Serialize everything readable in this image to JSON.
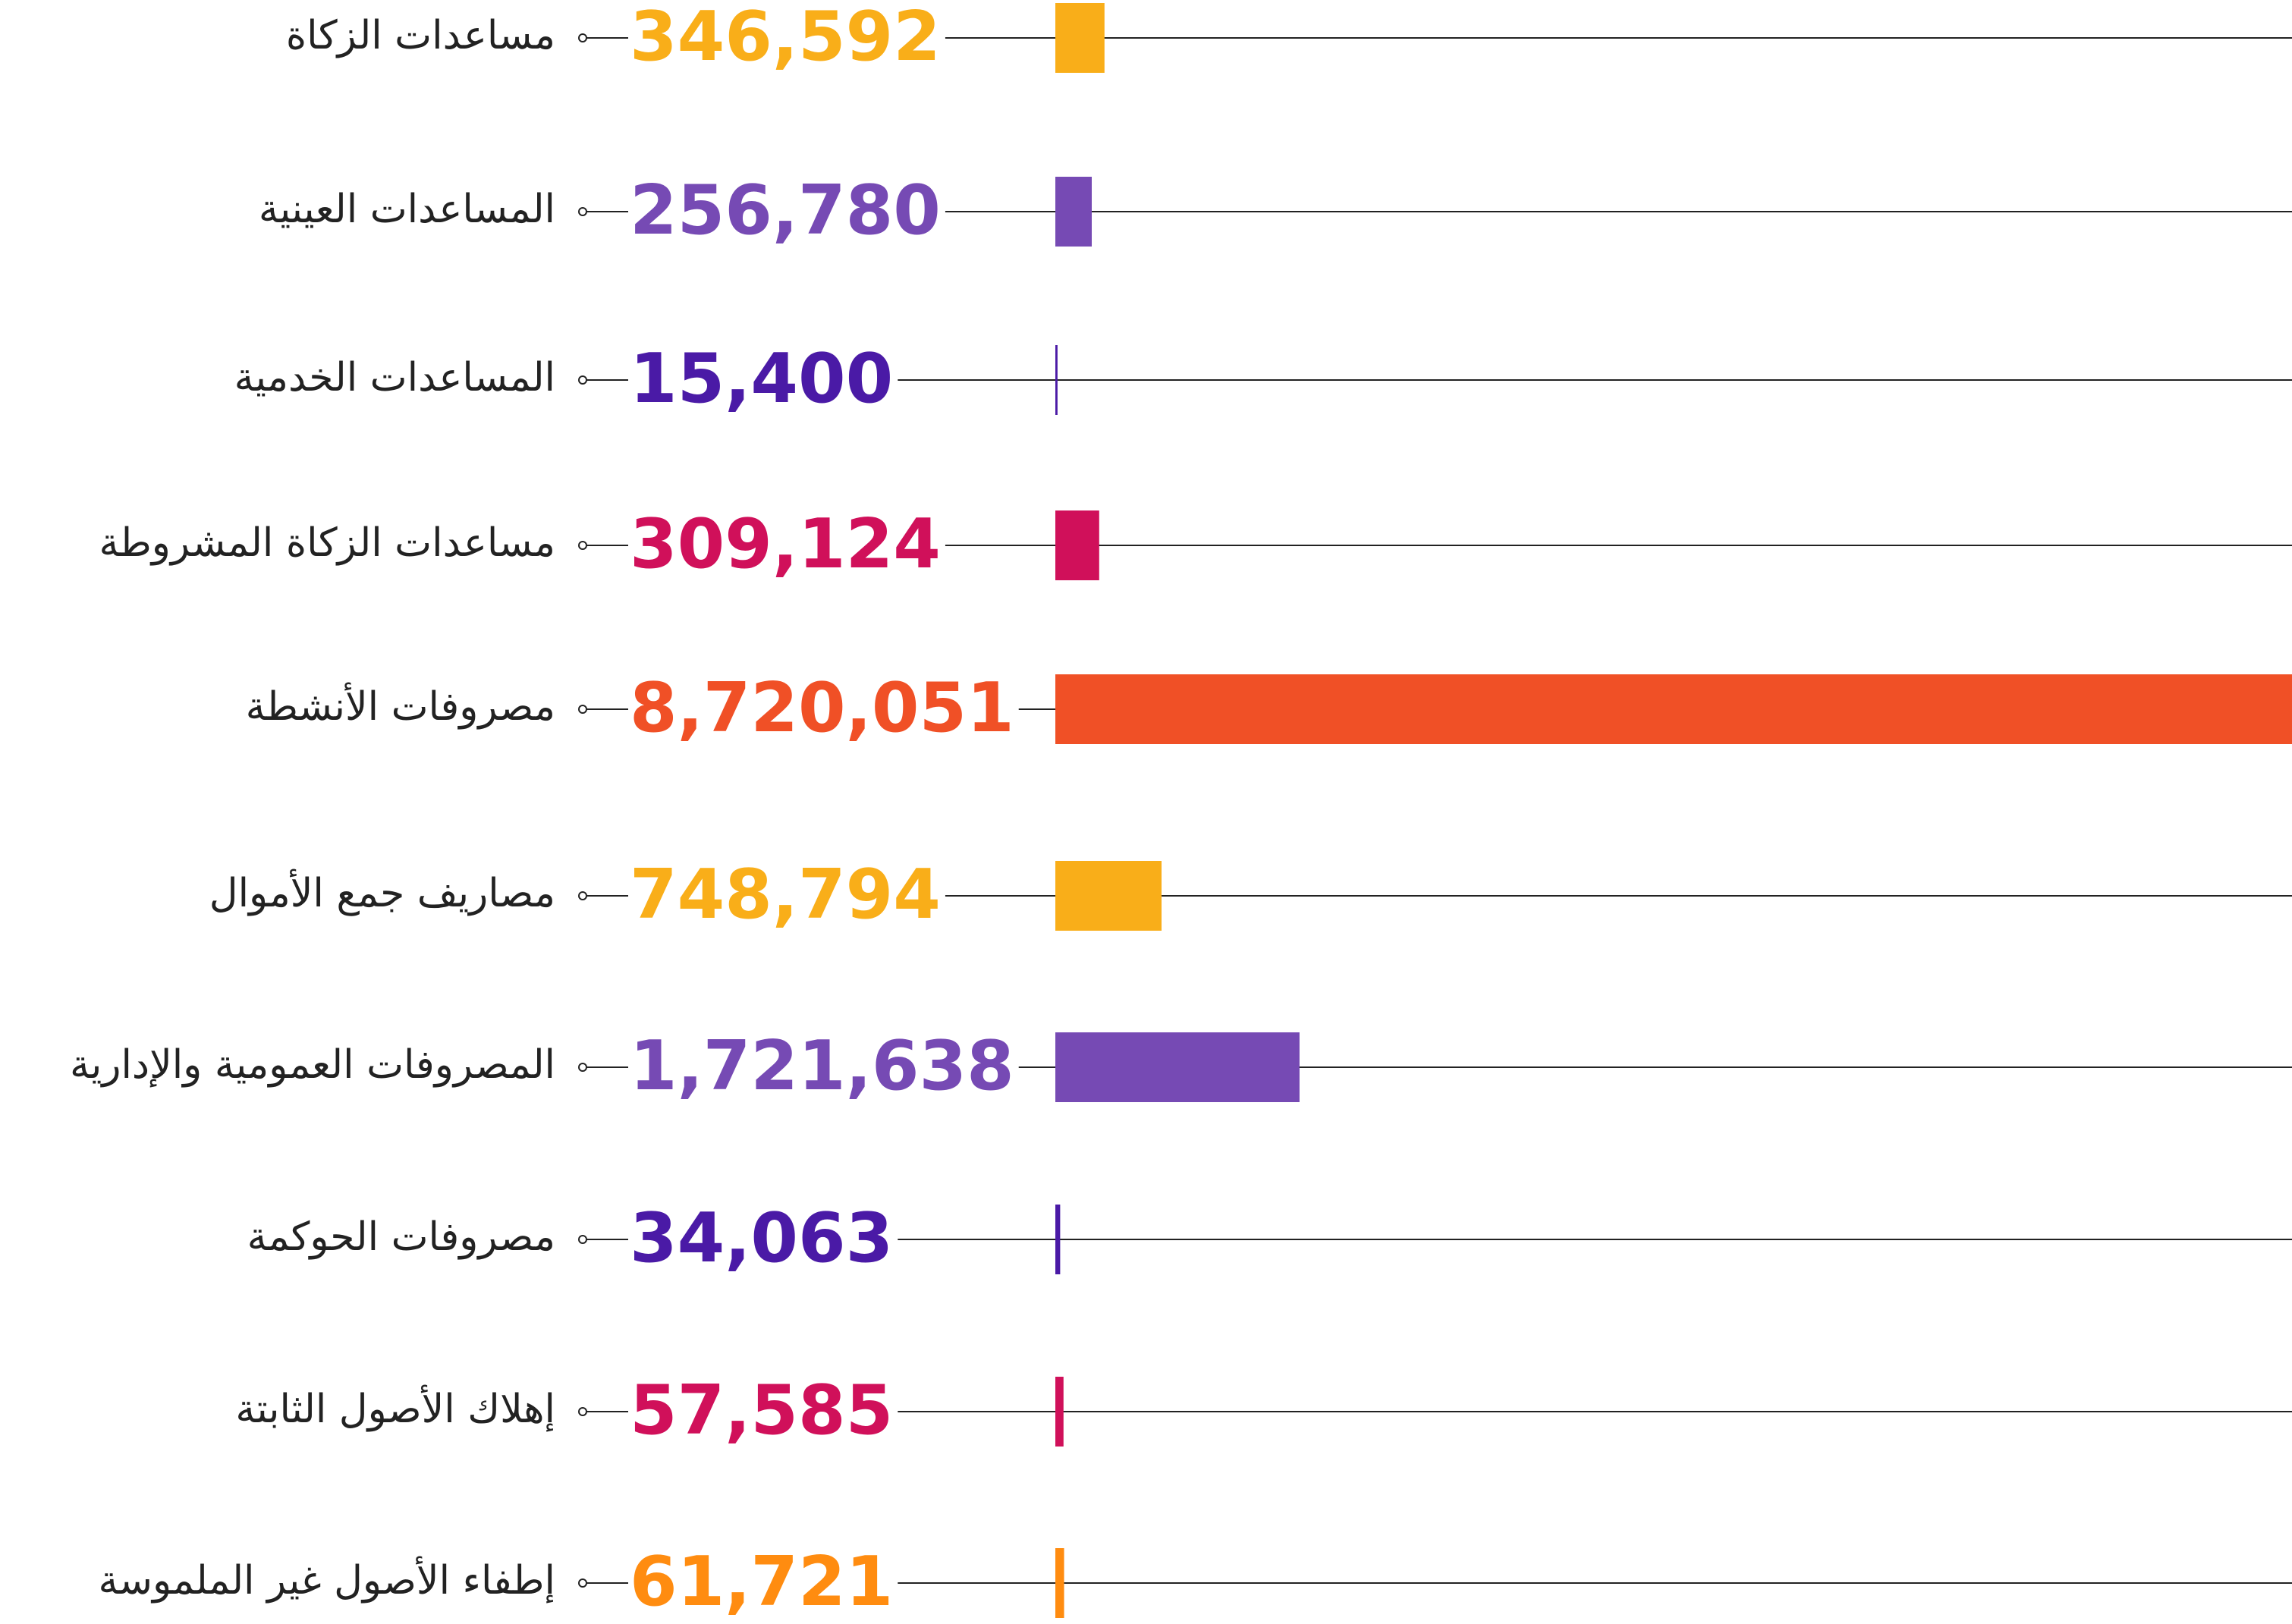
{
  "chart_data": {
    "type": "bar",
    "orientation": "horizontal",
    "categories": [
      "مساعدات الزكاة",
      "المساعدات العينية",
      "المساعدات الخدمية",
      "مساعدات الزكاة المشروطة",
      "مصروفات الأنشطة",
      "مصاريف جمع الأموال",
      "المصروفات العمومية والإدارية",
      "مصروفات الحوكمة",
      "إهلاك الأصول الثابتة",
      "إطفاء الأصول غير الملموسة"
    ],
    "values": [
      346592,
      256780,
      15400,
      309124,
      8720051,
      748794,
      1721638,
      34063,
      57585,
      61721
    ],
    "value_labels": [
      "346,592",
      "256,780",
      "15,400",
      "309,124",
      "8,720,051",
      "748,794",
      "1,721,638",
      "34,063",
      "57,585",
      "61,721"
    ],
    "colors": [
      "#f9ae19",
      "#764ab4",
      "#4a1aa6",
      "#d0105a",
      "#f05026",
      "#f9ae19",
      "#764ab4",
      "#4a1aa6",
      "#d0105a",
      "#ff8c10"
    ]
  }
}
